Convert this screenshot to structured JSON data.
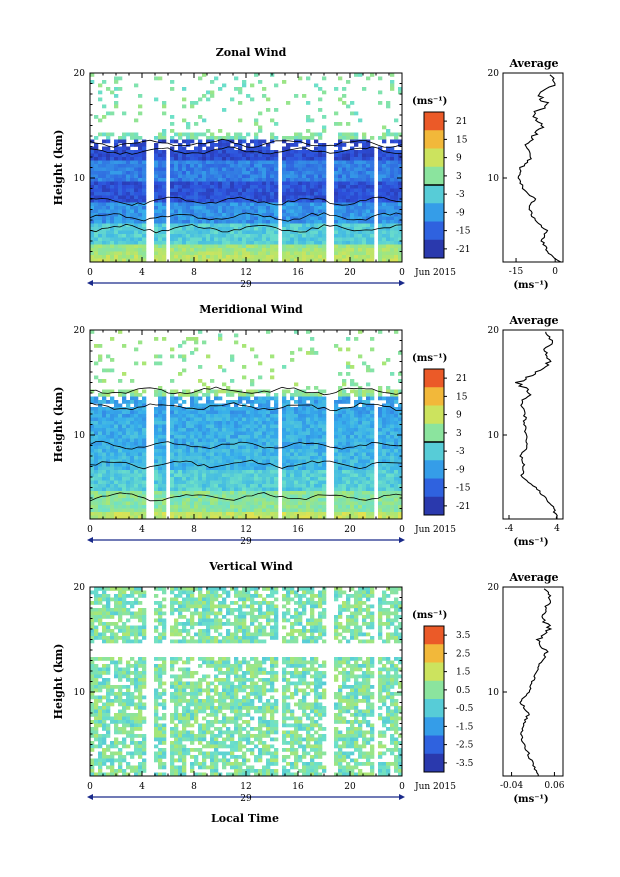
{
  "figure": {
    "x_label": "Local Time",
    "date_label": "Jun 2015",
    "day_label": "29"
  },
  "icons": {
    "time_axis_start": "arrow-left-icon",
    "time_axis_end": "arrow-right-icon"
  },
  "chart_data": [
    {
      "type": "heatmap",
      "title": "Zonal Wind",
      "ylabel": "Height (km)",
      "xlabel": "Local Time",
      "x_ticks": [
        "0",
        "4",
        "8",
        "12",
        "16",
        "20",
        "0"
      ],
      "x_range": [
        0,
        24
      ],
      "y_ticks": [
        "10",
        "20"
      ],
      "y_range": [
        2,
        20
      ],
      "colorbar": {
        "unit": "(ms⁻¹)",
        "tick_labels": [
          "21",
          "15",
          "9",
          "3",
          "-3",
          "-9",
          "-15",
          "-21"
        ],
        "range": [
          -24,
          24
        ],
        "contour_level": 0
      },
      "gaps_hours": [
        4.5,
        5.9,
        14.5,
        18.3,
        21.8
      ],
      "profile": {
        "title": "Average",
        "xlabel": "(ms⁻¹)",
        "x_ticks": [
          "-15",
          "0"
        ],
        "x_range": [
          -20,
          3
        ],
        "height_km": [
          2,
          3,
          4,
          5,
          6,
          7,
          8,
          9,
          10,
          11,
          12,
          13,
          14,
          15,
          16,
          17,
          18,
          19,
          20
        ],
        "values": [
          2,
          -3,
          -5,
          -3,
          -8,
          -10,
          -8,
          -12,
          -14,
          -13,
          -9,
          -11,
          -8,
          -5,
          -9,
          -3,
          -7,
          0,
          -3
        ]
      }
    },
    {
      "type": "heatmap",
      "title": "Meridional Wind",
      "ylabel": "Height (km)",
      "xlabel": "Local Time",
      "x_ticks": [
        "0",
        "4",
        "8",
        "12",
        "16",
        "20",
        "0"
      ],
      "x_range": [
        0,
        24
      ],
      "y_ticks": [
        "10",
        "20"
      ],
      "y_range": [
        2,
        20
      ],
      "colorbar": {
        "unit": "(ms⁻¹)",
        "tick_labels": [
          "21",
          "15",
          "9",
          "3",
          "-3",
          "-9",
          "-15",
          "-21"
        ],
        "range": [
          -24,
          24
        ],
        "contour_level": 0
      },
      "gaps_hours": [
        4.5,
        5.9,
        14.5,
        18.3,
        21.8
      ],
      "profile": {
        "title": "Average",
        "xlabel": "(ms⁻¹)",
        "x_ticks": [
          "-4",
          "4"
        ],
        "x_range": [
          -5,
          5
        ],
        "height_km": [
          2,
          3,
          4,
          5,
          6,
          7,
          8,
          9,
          10,
          11,
          12,
          13,
          14,
          15,
          16,
          17,
          18,
          19,
          20
        ],
        "values": [
          4,
          3.5,
          2,
          0.5,
          -2,
          -1.5,
          -2,
          -1,
          -1.2,
          -1.5,
          -1.3,
          -2,
          -0.5,
          -2.5,
          0.5,
          3,
          2,
          3,
          2
        ]
      }
    },
    {
      "type": "heatmap",
      "title": "Vertical Wind",
      "ylabel": "Height (km)",
      "xlabel": "Local Time",
      "x_ticks": [
        "0",
        "4",
        "8",
        "12",
        "16",
        "20",
        "0"
      ],
      "x_range": [
        0,
        24
      ],
      "y_ticks": [
        "10",
        "20"
      ],
      "y_range": [
        2,
        20
      ],
      "colorbar": {
        "unit": "(ms⁻¹)",
        "tick_labels": [
          "3.5",
          "2.5",
          "1.5",
          "0.5",
          "-0.5",
          "-1.5",
          "-2.5",
          "-3.5"
        ],
        "range": [
          -4,
          4
        ],
        "contour_level": null
      },
      "gaps_hours": [
        4.5,
        5.9,
        14.5,
        18.3,
        21.8
      ],
      "profile": {
        "title": "Average",
        "xlabel": "(ms⁻¹)",
        "x_ticks": [
          "-0.04",
          "0.06"
        ],
        "x_range": [
          -0.06,
          0.08
        ],
        "height_km": [
          2,
          3,
          4,
          5,
          6,
          7,
          8,
          9,
          10,
          11,
          12,
          13,
          14,
          15,
          16,
          17,
          18,
          19,
          20
        ],
        "values": [
          0.02,
          0.01,
          0.0,
          -0.01,
          -0.02,
          -0.01,
          0.0,
          -0.02,
          0.0,
          0.01,
          0.02,
          0.03,
          0.04,
          0.02,
          0.05,
          0.03,
          0.04,
          0.05,
          0.03
        ]
      }
    }
  ]
}
